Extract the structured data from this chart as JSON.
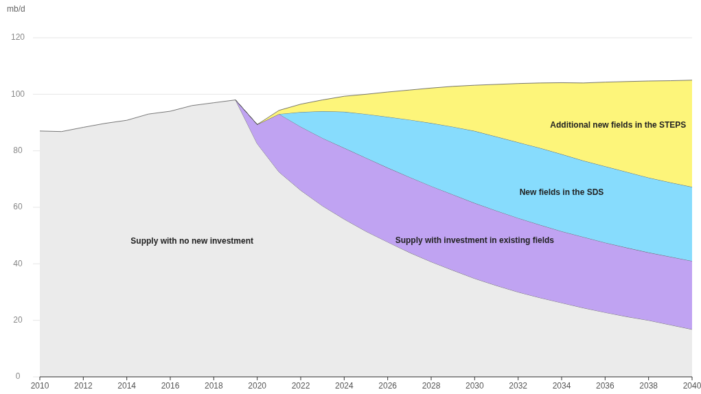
{
  "chart_data": {
    "type": "area",
    "stacked": true,
    "ylabel": "mb/d",
    "x": [
      2010,
      2011,
      2012,
      2013,
      2014,
      2015,
      2016,
      2017,
      2018,
      2019,
      2020,
      2021,
      2022,
      2023,
      2024,
      2025,
      2026,
      2027,
      2028,
      2029,
      2030,
      2031,
      2032,
      2033,
      2034,
      2035,
      2036,
      2037,
      2038,
      2039,
      2040
    ],
    "series": [
      {
        "name": "Supply with no new investment",
        "color": "#ebebeb",
        "values": [
          87,
          86.8,
          88.3,
          89.7,
          90.8,
          93,
          94,
          96,
          97,
          98,
          82.5,
          72.5,
          66,
          60.5,
          55.8,
          51.5,
          47.7,
          44,
          40.7,
          37.7,
          34.8,
          32.3,
          30,
          28,
          26.2,
          24.4,
          22.8,
          21.3,
          20,
          18.4,
          16.8
        ]
      },
      {
        "name": "Supply with investment in existing fields",
        "color": "#c0a3f2",
        "values": [
          null,
          null,
          null,
          null,
          null,
          null,
          null,
          null,
          null,
          0,
          6.8,
          20.5,
          22.5,
          24,
          25.2,
          26,
          26.3,
          26.7,
          26.8,
          26.8,
          26.7,
          26.5,
          26.2,
          25.8,
          25.3,
          25.1,
          24.7,
          24.4,
          24,
          24.1,
          24.2
        ]
      },
      {
        "name": "New fields in the SDS",
        "color": "#87dcfd",
        "values": [
          null,
          null,
          null,
          null,
          null,
          null,
          null,
          null,
          null,
          0,
          0,
          0,
          5.2,
          9.5,
          12.8,
          15.5,
          18,
          20.3,
          22.3,
          24,
          25.5,
          26.2,
          26.8,
          27.2,
          27.3,
          27,
          27,
          26.8,
          26.5,
          26.3,
          26.2
        ]
      },
      {
        "name": "Additional new fields in the STEPS",
        "color": "#fdf57a",
        "values": [
          null,
          null,
          null,
          null,
          null,
          null,
          null,
          null,
          null,
          0,
          0,
          1.3,
          2.8,
          4,
          5.5,
          7,
          8.8,
          10.5,
          12.4,
          14.3,
          16.2,
          18.5,
          20.8,
          23,
          25.3,
          27.5,
          29.8,
          32,
          34.2,
          36,
          37.8
        ]
      }
    ],
    "xlim": [
      2010,
      2040
    ],
    "xticks": [
      2010,
      2012,
      2014,
      2016,
      2018,
      2020,
      2022,
      2024,
      2026,
      2028,
      2030,
      2032,
      2034,
      2036,
      2038,
      2040
    ],
    "ylim": [
      0,
      120
    ],
    "yticks": [
      0,
      20,
      40,
      60,
      80,
      100,
      120
    ],
    "grid": "y"
  }
}
